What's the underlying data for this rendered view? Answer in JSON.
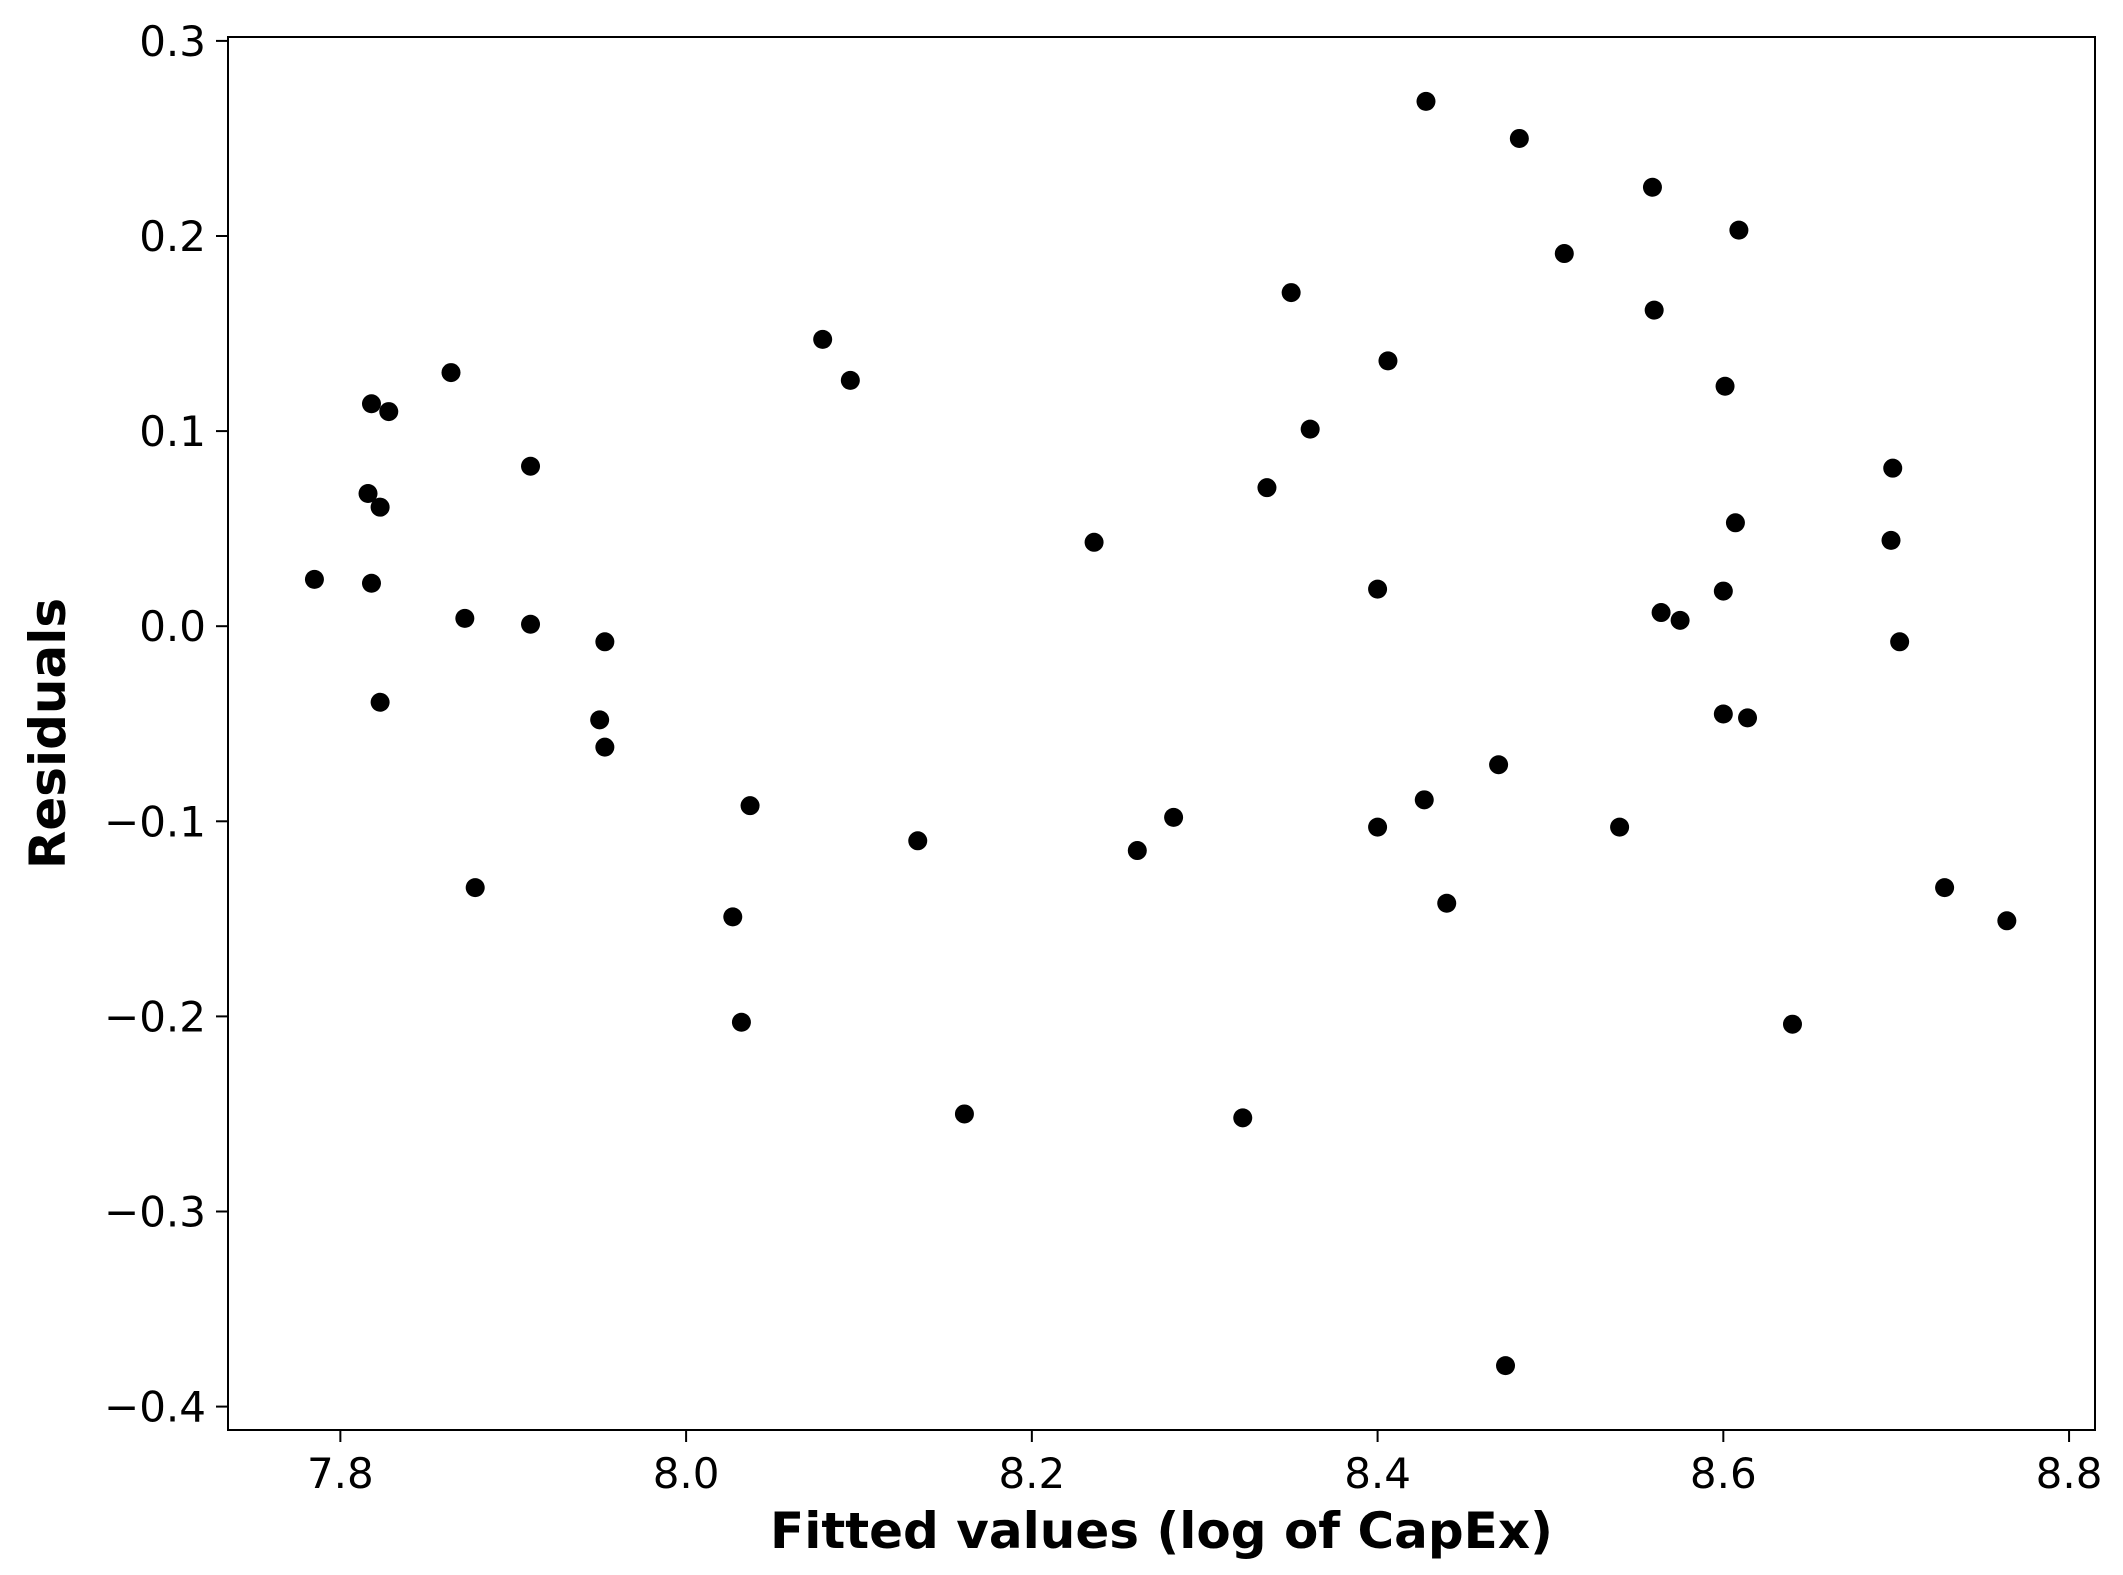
{
  "chart_data": {
    "type": "scatter",
    "xlabel": "Fitted values (log of CapEx)",
    "ylabel": "Residuals",
    "xlim": [
      7.735,
      8.815
    ],
    "ylim": [
      -0.412,
      0.302
    ],
    "xticks": [
      7.8,
      8.0,
      8.2,
      8.4,
      8.6,
      8.8
    ],
    "xtick_labels": [
      "7.8",
      "8.0",
      "8.2",
      "8.4",
      "8.6",
      "8.8"
    ],
    "yticks": [
      0.3,
      0.2,
      0.1,
      0.0,
      -0.1,
      -0.2,
      -0.3,
      -0.4
    ],
    "ytick_labels": [
      "0.3",
      "0.2",
      "0.1",
      "0.0",
      "−0.1",
      "−0.2",
      "−0.3",
      "−0.4"
    ],
    "grid": false,
    "marker_color": "#000000",
    "points": [
      {
        "x": 7.785,
        "y": 0.024
      },
      {
        "x": 7.816,
        "y": 0.068
      },
      {
        "x": 7.818,
        "y": 0.114
      },
      {
        "x": 7.818,
        "y": 0.022
      },
      {
        "x": 7.823,
        "y": 0.061
      },
      {
        "x": 7.823,
        "y": -0.039
      },
      {
        "x": 7.828,
        "y": 0.11
      },
      {
        "x": 7.864,
        "y": 0.13
      },
      {
        "x": 7.872,
        "y": 0.004
      },
      {
        "x": 7.878,
        "y": -0.134
      },
      {
        "x": 7.91,
        "y": 0.082
      },
      {
        "x": 7.91,
        "y": 0.001
      },
      {
        "x": 7.95,
        "y": -0.048
      },
      {
        "x": 7.953,
        "y": -0.008
      },
      {
        "x": 7.953,
        "y": -0.062
      },
      {
        "x": 8.027,
        "y": -0.149
      },
      {
        "x": 8.032,
        "y": -0.203
      },
      {
        "x": 8.037,
        "y": -0.092
      },
      {
        "x": 8.079,
        "y": 0.147
      },
      {
        "x": 8.095,
        "y": 0.126
      },
      {
        "x": 8.134,
        "y": -0.11
      },
      {
        "x": 8.161,
        "y": -0.25
      },
      {
        "x": 8.236,
        "y": 0.043
      },
      {
        "x": 8.261,
        "y": -0.115
      },
      {
        "x": 8.282,
        "y": -0.098
      },
      {
        "x": 8.322,
        "y": -0.252
      },
      {
        "x": 8.336,
        "y": 0.071
      },
      {
        "x": 8.35,
        "y": 0.171
      },
      {
        "x": 8.361,
        "y": 0.101
      },
      {
        "x": 8.4,
        "y": 0.019
      },
      {
        "x": 8.4,
        "y": -0.103
      },
      {
        "x": 8.406,
        "y": 0.136
      },
      {
        "x": 8.427,
        "y": -0.089
      },
      {
        "x": 8.428,
        "y": 0.269
      },
      {
        "x": 8.44,
        "y": -0.142
      },
      {
        "x": 8.47,
        "y": -0.071
      },
      {
        "x": 8.474,
        "y": -0.379
      },
      {
        "x": 8.482,
        "y": 0.25
      },
      {
        "x": 8.508,
        "y": 0.191
      },
      {
        "x": 8.54,
        "y": -0.103
      },
      {
        "x": 8.559,
        "y": 0.225
      },
      {
        "x": 8.56,
        "y": 0.162
      },
      {
        "x": 8.564,
        "y": 0.007
      },
      {
        "x": 8.575,
        "y": 0.003
      },
      {
        "x": 8.6,
        "y": 0.018
      },
      {
        "x": 8.6,
        "y": -0.045
      },
      {
        "x": 8.601,
        "y": 0.123
      },
      {
        "x": 8.607,
        "y": 0.053
      },
      {
        "x": 8.609,
        "y": 0.203
      },
      {
        "x": 8.614,
        "y": -0.047
      },
      {
        "x": 8.64,
        "y": -0.204
      },
      {
        "x": 8.697,
        "y": 0.044
      },
      {
        "x": 8.698,
        "y": 0.081
      },
      {
        "x": 8.702,
        "y": -0.008
      },
      {
        "x": 8.728,
        "y": -0.134
      },
      {
        "x": 8.764,
        "y": -0.151
      }
    ]
  }
}
